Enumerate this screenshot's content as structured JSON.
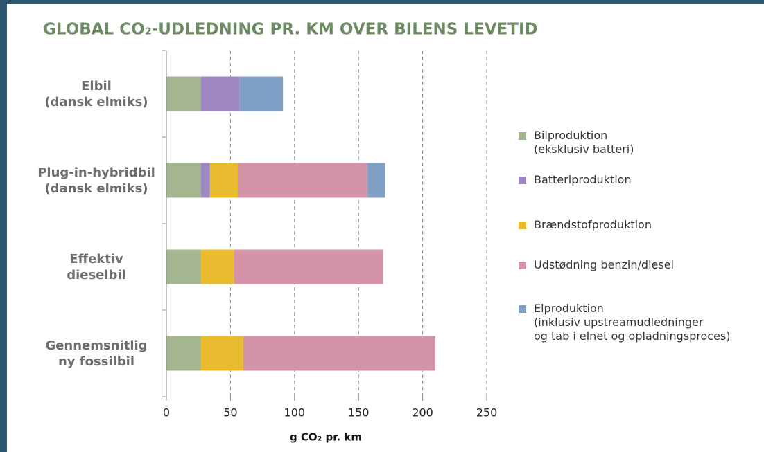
{
  "chart_data": {
    "type": "stacked_barh",
    "title": "GLOBAL CO₂-UDLEDNING PR. KM OVER BILENS LEVETID",
    "x_label": "g CO₂ pr. km",
    "categories": [
      "Elbil\n(dansk elmiks)",
      "Plug-in-hybridbil\n(dansk elmiks)",
      "Effektiv\ndieselbil",
      "Gennemsnitlig\nny fossilbil"
    ],
    "series": [
      {
        "name": "Bilproduktion\n(eksklusiv batteri)",
        "color": "#a3b690",
        "values": [
          27,
          27,
          27,
          27
        ]
      },
      {
        "name": "Batteriproduktion",
        "color": "#9e87c2",
        "values": [
          30,
          7,
          null,
          null
        ]
      },
      {
        "name": "Brændstofproduktion",
        "color": "#e8bc2e",
        "values": [
          null,
          22,
          26,
          33
        ]
      },
      {
        "name": "Udstødning benzin/diesel",
        "color": "#d493a7",
        "values": [
          null,
          101,
          116,
          150
        ]
      },
      {
        "name": "Elproduktion\n(inklusiv upstreamudledninger\nog tab i elnet og opladningsproces)",
        "color": "#7f9fc4",
        "values": [
          34,
          14,
          null,
          null
        ]
      }
    ],
    "xlim": [
      0,
      250
    ],
    "xticks": [
      0,
      50,
      100,
      150,
      200,
      250
    ],
    "grid": true
  }
}
